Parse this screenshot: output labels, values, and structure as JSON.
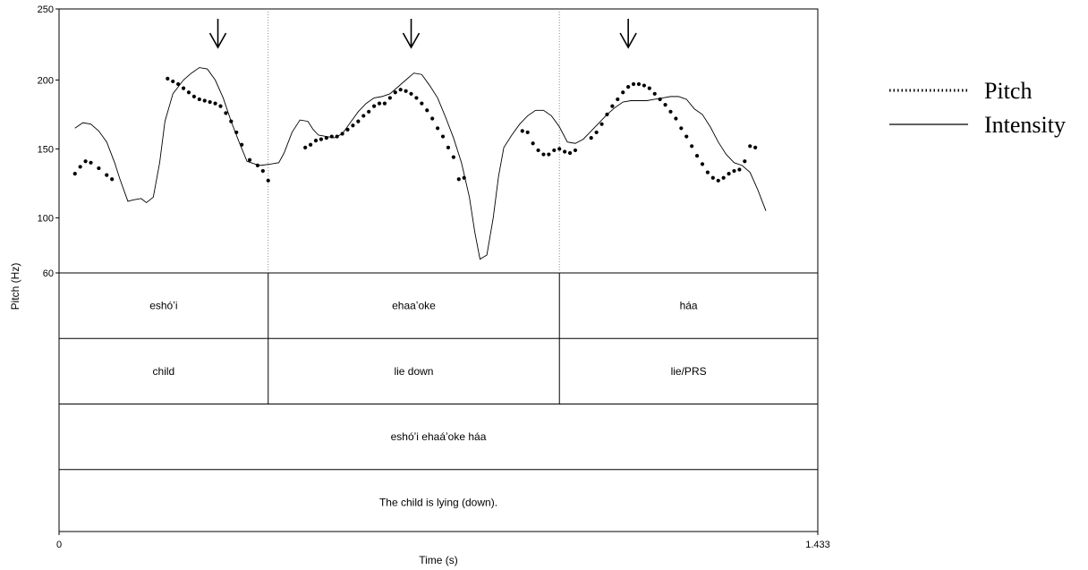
{
  "chart_data": {
    "type": "line",
    "xlabel": "Time (s)",
    "ylabel": "Pitch (Hz)",
    "xlim": [
      0,
      1.433
    ],
    "ylim": [
      60,
      250
    ],
    "x_tick_labels": [
      "0",
      "1.433"
    ],
    "y_tick_labels": [
      "250",
      "200",
      "150",
      "100",
      "60"
    ],
    "legend_position": "right",
    "series": [
      {
        "name": "Pitch",
        "style": "dotted",
        "color": "#000000",
        "points": [
          [
            0.03,
            132
          ],
          [
            0.04,
            137
          ],
          [
            0.05,
            141
          ],
          [
            0.06,
            140
          ],
          [
            0.075,
            136
          ],
          [
            0.09,
            131
          ],
          [
            0.1,
            128
          ],
          [
            0.205,
            201
          ],
          [
            0.215,
            199
          ],
          [
            0.225,
            197
          ],
          [
            0.235,
            194
          ],
          [
            0.245,
            191
          ],
          [
            0.255,
            188
          ],
          [
            0.265,
            186
          ],
          [
            0.275,
            185
          ],
          [
            0.285,
            184
          ],
          [
            0.295,
            183
          ],
          [
            0.305,
            181
          ],
          [
            0.315,
            176
          ],
          [
            0.325,
            170
          ],
          [
            0.335,
            162
          ],
          [
            0.345,
            153
          ],
          [
            0.36,
            142
          ],
          [
            0.375,
            138
          ],
          [
            0.385,
            134
          ],
          [
            0.395,
            127
          ],
          [
            0.465,
            151
          ],
          [
            0.475,
            153
          ],
          [
            0.485,
            156
          ],
          [
            0.495,
            157
          ],
          [
            0.505,
            158
          ],
          [
            0.515,
            159
          ],
          [
            0.525,
            159
          ],
          [
            0.535,
            161
          ],
          [
            0.545,
            164
          ],
          [
            0.555,
            167
          ],
          [
            0.565,
            170
          ],
          [
            0.575,
            174
          ],
          [
            0.585,
            177
          ],
          [
            0.595,
            181
          ],
          [
            0.605,
            183
          ],
          [
            0.615,
            183
          ],
          [
            0.625,
            187
          ],
          [
            0.635,
            191
          ],
          [
            0.645,
            193
          ],
          [
            0.655,
            192
          ],
          [
            0.665,
            190
          ],
          [
            0.675,
            187
          ],
          [
            0.685,
            183
          ],
          [
            0.695,
            178
          ],
          [
            0.705,
            172
          ],
          [
            0.715,
            165
          ],
          [
            0.725,
            159
          ],
          [
            0.735,
            151
          ],
          [
            0.745,
            144
          ],
          [
            0.755,
            128
          ],
          [
            0.765,
            129
          ],
          [
            0.875,
            163
          ],
          [
            0.885,
            162
          ],
          [
            0.895,
            154
          ],
          [
            0.905,
            149
          ],
          [
            0.915,
            146
          ],
          [
            0.925,
            146
          ],
          [
            0.935,
            149
          ],
          [
            0.945,
            150
          ],
          [
            0.955,
            148
          ],
          [
            0.965,
            147
          ],
          [
            0.975,
            149
          ],
          [
            1.005,
            158
          ],
          [
            1.015,
            162
          ],
          [
            1.025,
            168
          ],
          [
            1.035,
            175
          ],
          [
            1.045,
            181
          ],
          [
            1.055,
            186
          ],
          [
            1.065,
            191
          ],
          [
            1.075,
            195
          ],
          [
            1.085,
            197
          ],
          [
            1.095,
            197
          ],
          [
            1.105,
            196
          ],
          [
            1.115,
            194
          ],
          [
            1.125,
            190
          ],
          [
            1.135,
            186
          ],
          [
            1.145,
            182
          ],
          [
            1.155,
            177
          ],
          [
            1.165,
            172
          ],
          [
            1.175,
            165
          ],
          [
            1.185,
            159
          ],
          [
            1.195,
            152
          ],
          [
            1.205,
            145
          ],
          [
            1.215,
            139
          ],
          [
            1.225,
            133
          ],
          [
            1.235,
            129
          ],
          [
            1.245,
            127
          ],
          [
            1.255,
            129
          ],
          [
            1.265,
            132
          ],
          [
            1.275,
            134
          ],
          [
            1.285,
            135
          ],
          [
            1.295,
            141
          ],
          [
            1.305,
            152
          ],
          [
            1.315,
            151
          ]
        ]
      },
      {
        "name": "Intensity",
        "style": "solid",
        "color": "#000000",
        "points": [
          [
            0.03,
            165
          ],
          [
            0.045,
            169
          ],
          [
            0.06,
            168
          ],
          [
            0.075,
            163
          ],
          [
            0.09,
            155
          ],
          [
            0.105,
            140
          ],
          [
            0.115,
            128
          ],
          [
            0.13,
            112
          ],
          [
            0.14,
            113
          ],
          [
            0.155,
            114
          ],
          [
            0.165,
            111
          ],
          [
            0.178,
            115
          ],
          [
            0.19,
            140
          ],
          [
            0.2,
            170
          ],
          [
            0.215,
            190
          ],
          [
            0.235,
            200
          ],
          [
            0.25,
            205
          ],
          [
            0.265,
            209
          ],
          [
            0.28,
            208
          ],
          [
            0.295,
            200
          ],
          [
            0.31,
            187
          ],
          [
            0.325,
            170
          ],
          [
            0.34,
            155
          ],
          [
            0.355,
            141
          ],
          [
            0.37,
            139
          ],
          [
            0.38,
            138
          ],
          [
            0.4,
            139
          ],
          [
            0.415,
            140
          ],
          [
            0.425,
            147
          ],
          [
            0.44,
            162
          ],
          [
            0.455,
            171
          ],
          [
            0.47,
            170
          ],
          [
            0.48,
            164
          ],
          [
            0.49,
            160
          ],
          [
            0.505,
            159
          ],
          [
            0.52,
            158
          ],
          [
            0.535,
            161
          ],
          [
            0.55,
            169
          ],
          [
            0.565,
            177
          ],
          [
            0.58,
            183
          ],
          [
            0.595,
            187
          ],
          [
            0.61,
            188
          ],
          [
            0.625,
            190
          ],
          [
            0.64,
            195
          ],
          [
            0.655,
            200
          ],
          [
            0.67,
            205
          ],
          [
            0.685,
            204
          ],
          [
            0.7,
            196
          ],
          [
            0.715,
            187
          ],
          [
            0.73,
            173
          ],
          [
            0.745,
            158
          ],
          [
            0.76,
            140
          ],
          [
            0.775,
            115
          ],
          [
            0.785,
            90
          ],
          [
            0.795,
            70
          ],
          [
            0.808,
            73
          ],
          [
            0.82,
            100
          ],
          [
            0.83,
            130
          ],
          [
            0.84,
            151
          ],
          [
            0.855,
            160
          ],
          [
            0.87,
            168
          ],
          [
            0.885,
            174
          ],
          [
            0.9,
            178
          ],
          [
            0.915,
            178
          ],
          [
            0.93,
            174
          ],
          [
            0.945,
            166
          ],
          [
            0.96,
            155
          ],
          [
            0.975,
            154
          ],
          [
            0.99,
            157
          ],
          [
            1.005,
            163
          ],
          [
            1.02,
            169
          ],
          [
            1.035,
            175
          ],
          [
            1.05,
            180
          ],
          [
            1.065,
            184
          ],
          [
            1.08,
            185
          ],
          [
            1.095,
            185
          ],
          [
            1.11,
            185
          ],
          [
            1.125,
            186
          ],
          [
            1.14,
            187
          ],
          [
            1.155,
            188
          ],
          [
            1.17,
            188
          ],
          [
            1.185,
            186
          ],
          [
            1.2,
            179
          ],
          [
            1.215,
            175
          ],
          [
            1.23,
            166
          ],
          [
            1.245,
            155
          ],
          [
            1.26,
            146
          ],
          [
            1.275,
            140
          ],
          [
            1.29,
            138
          ],
          [
            1.305,
            133
          ],
          [
            1.32,
            120
          ],
          [
            1.335,
            105
          ]
        ]
      }
    ],
    "annotations": [
      {
        "type": "down-arrow",
        "x": 0.3
      },
      {
        "type": "down-arrow",
        "x": 0.665
      },
      {
        "type": "down-arrow",
        "x": 1.075
      }
    ],
    "boundaries": [
      0.395,
      0.945
    ],
    "tiers": [
      {
        "cells": [
          {
            "text": "eshóʼi",
            "start": 0,
            "end": 0.395
          },
          {
            "text": "ehaaʼoke",
            "start": 0.395,
            "end": 0.945
          },
          {
            "text": "háa",
            "start": 0.945,
            "end": 1.433
          }
        ]
      },
      {
        "cells": [
          {
            "text": "child",
            "start": 0,
            "end": 0.395
          },
          {
            "text": "lie down",
            "start": 0.395,
            "end": 0.945
          },
          {
            "text": "lie/PRS",
            "start": 0.945,
            "end": 1.433
          }
        ]
      },
      {
        "cells": [
          {
            "text": "eshóʼi ehaáʼoke háa",
            "start": 0,
            "end": 1.433
          }
        ]
      },
      {
        "cells": [
          {
            "text": "The child is lying (down).",
            "start": 0,
            "end": 1.433
          }
        ]
      }
    ]
  },
  "legend": {
    "pitch_label": "Pitch",
    "intensity_label": "Intensity"
  }
}
